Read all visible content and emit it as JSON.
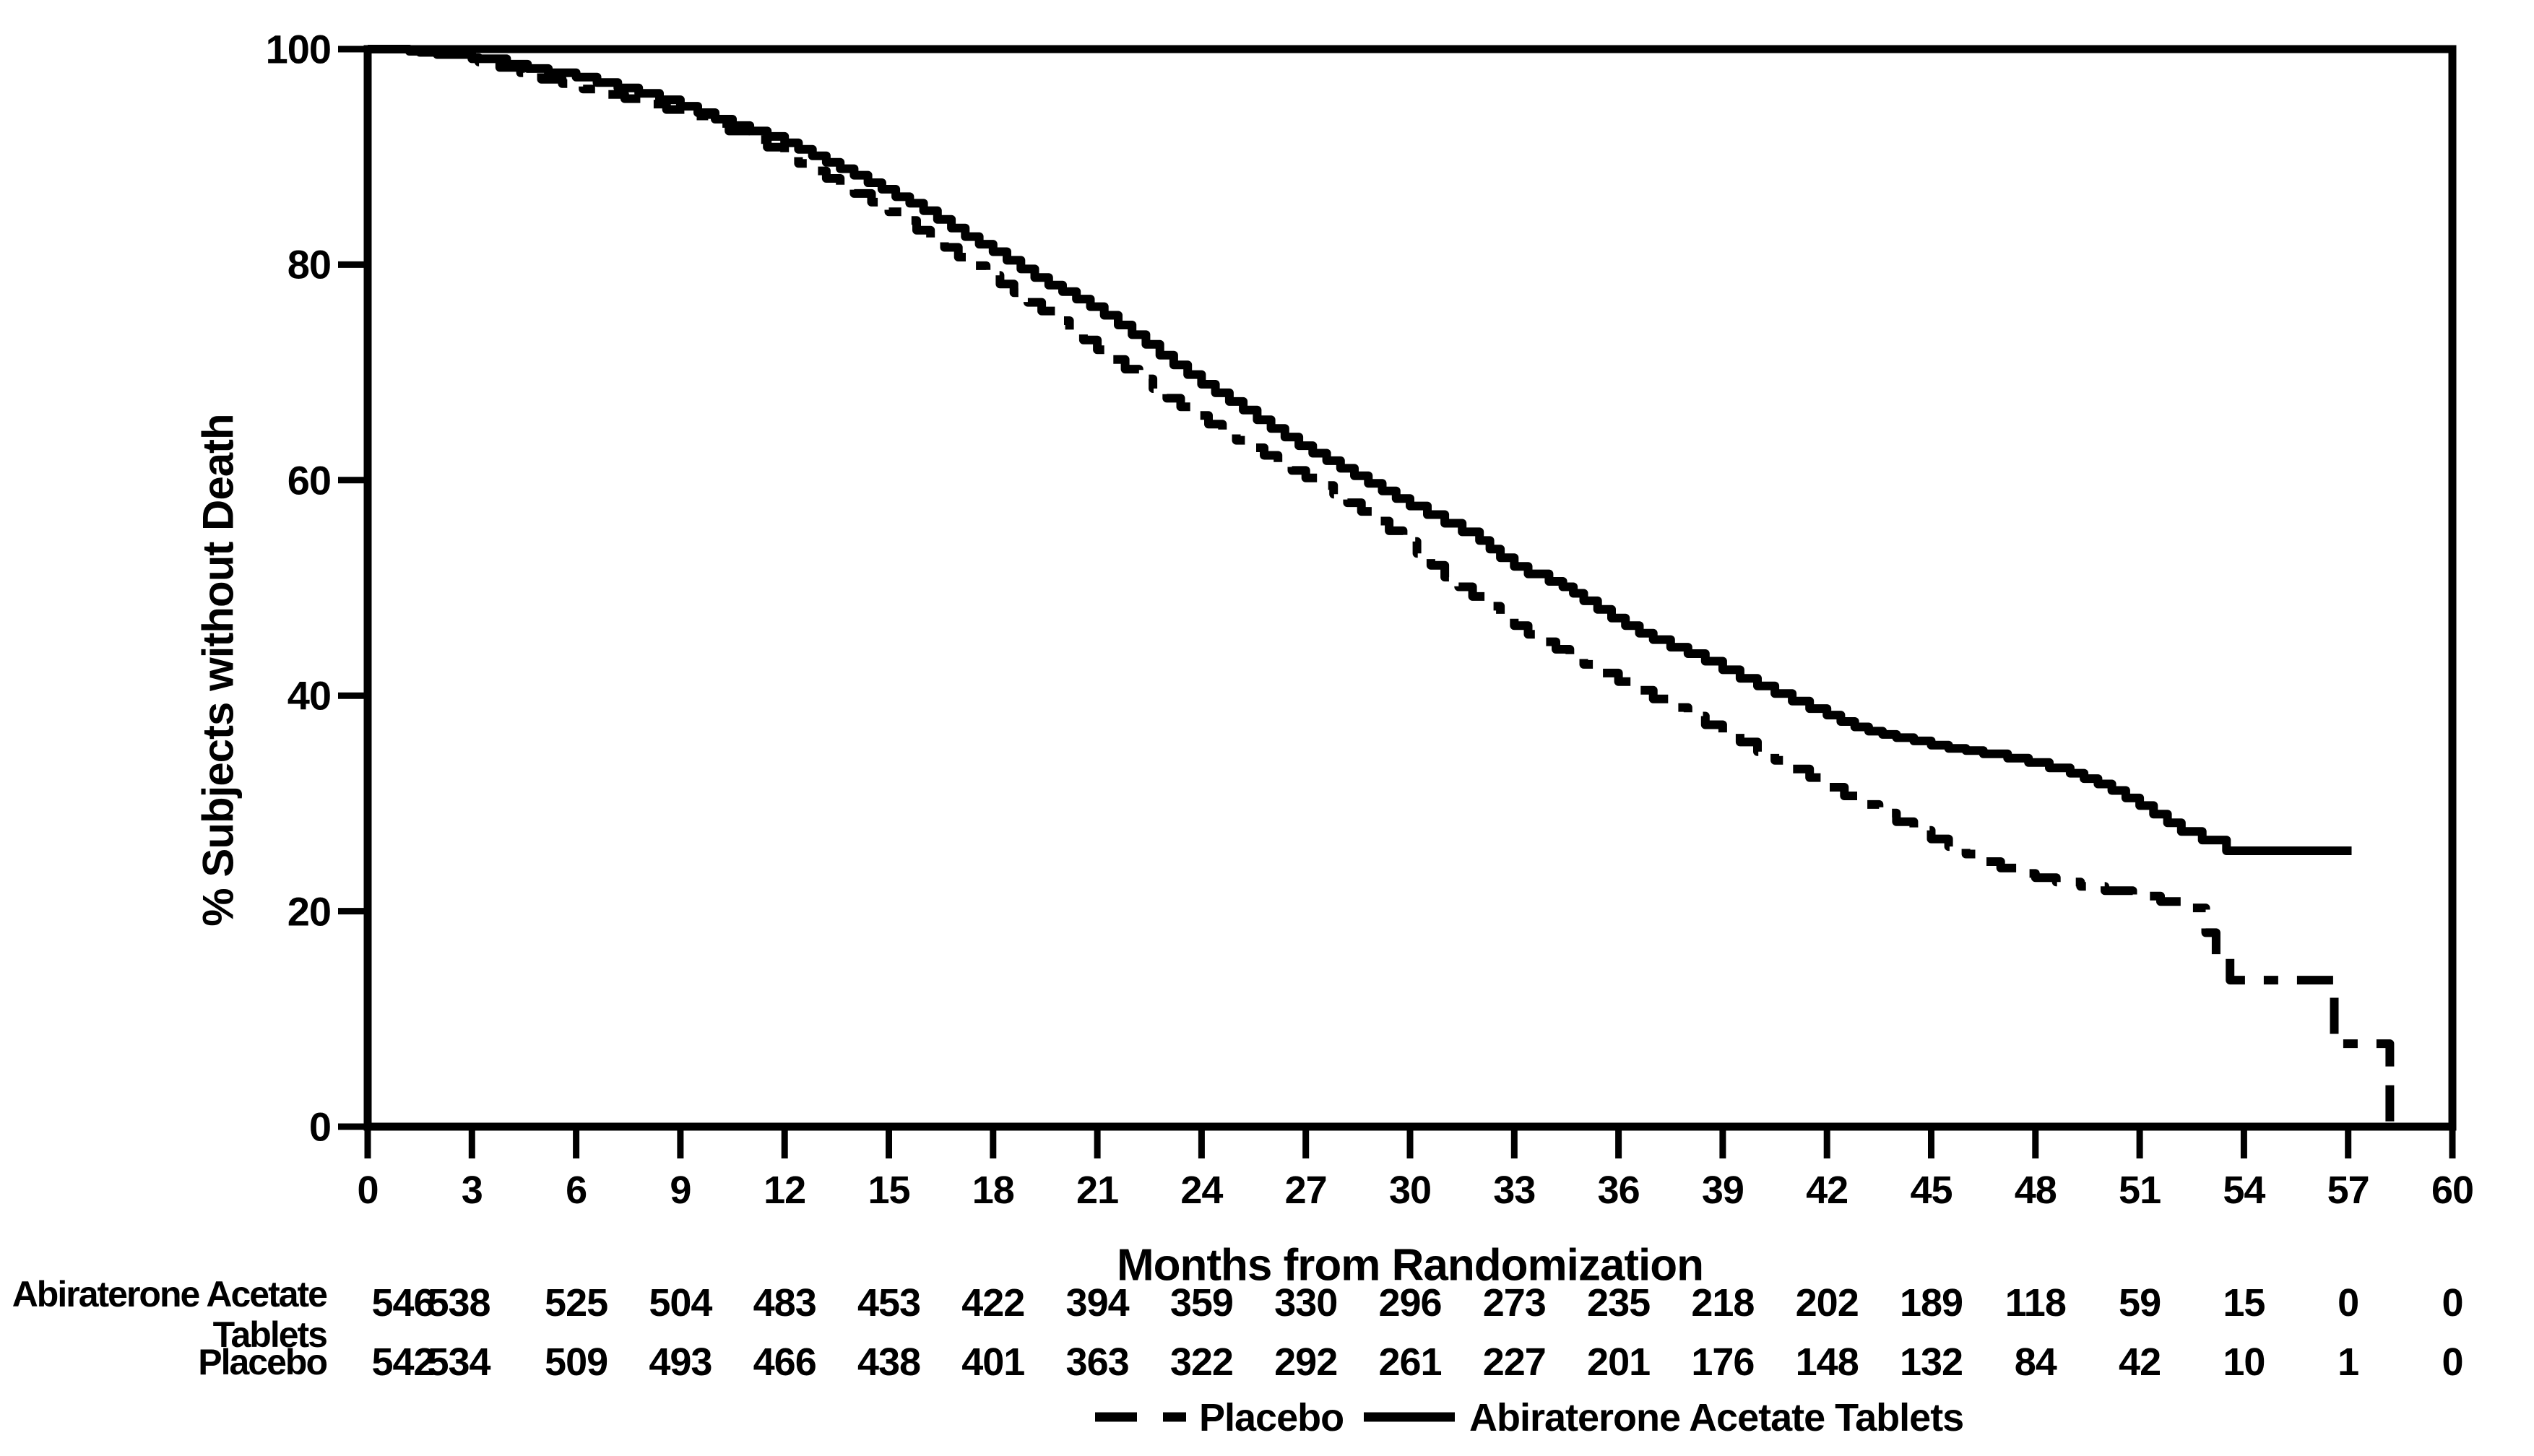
{
  "figure": {
    "background": "#ffffff",
    "ink": "#000000"
  },
  "chart_data": {
    "type": "line",
    "subtype": "kaplan-meier-step-curves",
    "title": "",
    "xlabel": "Months from Randomization",
    "ylabel": "% Subjects without Death",
    "xlim": [
      0,
      60
    ],
    "ylim": [
      0,
      100
    ],
    "x_ticks": [
      0,
      3,
      6,
      9,
      12,
      15,
      18,
      21,
      24,
      27,
      30,
      33,
      36,
      39,
      42,
      45,
      48,
      51,
      54,
      57,
      60
    ],
    "y_ticks": [
      0,
      20,
      40,
      60,
      80,
      100
    ],
    "grid": false,
    "legend_position": "bottom-center",
    "series": [
      {
        "name": "Placebo",
        "line_style": "dashed",
        "color": "#000000",
        "points": [
          [
            0,
            100
          ],
          [
            1.5,
            99.7
          ],
          [
            2.5,
            99.2
          ],
          [
            3.2,
            98.8
          ],
          [
            3.8,
            98.3
          ],
          [
            4.4,
            97.8
          ],
          [
            5,
            97.2
          ],
          [
            5.6,
            96.8
          ],
          [
            6.2,
            96.3
          ],
          [
            6.8,
            95.8
          ],
          [
            7.4,
            95.4
          ],
          [
            8,
            94.9
          ],
          [
            8.6,
            94.4
          ],
          [
            9.2,
            93.8
          ],
          [
            9.8,
            93.1
          ],
          [
            10.4,
            92.4
          ],
          [
            11,
            91.6
          ],
          [
            11.5,
            90.9
          ],
          [
            12,
            90.2
          ],
          [
            12.4,
            89.4
          ],
          [
            12.8,
            88.7
          ],
          [
            13.2,
            88
          ],
          [
            13.6,
            87.3
          ],
          [
            14,
            86.6
          ],
          [
            14.5,
            85.8
          ],
          [
            15,
            84.9
          ],
          [
            15.4,
            84.1
          ],
          [
            15.8,
            83.2
          ],
          [
            16.2,
            82.4
          ],
          [
            16.6,
            81.6
          ],
          [
            17,
            80.7
          ],
          [
            17.4,
            79.9
          ],
          [
            17.8,
            79
          ],
          [
            18.2,
            78.2
          ],
          [
            18.6,
            77.4
          ],
          [
            19,
            76.5
          ],
          [
            19.4,
            75.7
          ],
          [
            19.8,
            74.8
          ],
          [
            20.2,
            73.9
          ],
          [
            20.6,
            73
          ],
          [
            21,
            72.1
          ],
          [
            21.4,
            71.2
          ],
          [
            21.8,
            70.3
          ],
          [
            22.2,
            69.4
          ],
          [
            22.6,
            68.5
          ],
          [
            23,
            67.6
          ],
          [
            23.4,
            66.8
          ],
          [
            23.8,
            66
          ],
          [
            24.2,
            65.2
          ],
          [
            24.6,
            64.4
          ],
          [
            25,
            63.7
          ],
          [
            25.4,
            63
          ],
          [
            25.8,
            62.3
          ],
          [
            26.2,
            61.6
          ],
          [
            26.6,
            60.9
          ],
          [
            27,
            60.2
          ],
          [
            27.4,
            59.5
          ],
          [
            27.8,
            58.7
          ],
          [
            28.2,
            57.9
          ],
          [
            28.6,
            57.1
          ],
          [
            29,
            56.2
          ],
          [
            29.4,
            55.3
          ],
          [
            29.8,
            54.3
          ],
          [
            30.2,
            53.2
          ],
          [
            30.6,
            52.1
          ],
          [
            31,
            51
          ],
          [
            31.4,
            50.1
          ],
          [
            31.8,
            49.2
          ],
          [
            32.2,
            48.3
          ],
          [
            32.6,
            47.4
          ],
          [
            33,
            46.5
          ],
          [
            33.4,
            45.7
          ],
          [
            33.8,
            45
          ],
          [
            34.2,
            44.3
          ],
          [
            34.6,
            43.6
          ],
          [
            35,
            42.9
          ],
          [
            35.5,
            42.1
          ],
          [
            36,
            41.3
          ],
          [
            36.5,
            40.5
          ],
          [
            37,
            39.7
          ],
          [
            37.5,
            38.9
          ],
          [
            38,
            38.1
          ],
          [
            38.5,
            37.3
          ],
          [
            39,
            36.5
          ],
          [
            39.5,
            35.7
          ],
          [
            40,
            34.8
          ],
          [
            40.5,
            34
          ],
          [
            41,
            33.2
          ],
          [
            41.5,
            32.4
          ],
          [
            42,
            31.5
          ],
          [
            42.5,
            30.7
          ],
          [
            43,
            29.9
          ],
          [
            43.5,
            29.1
          ],
          [
            44,
            28.3
          ],
          [
            44.5,
            27.5
          ],
          [
            45,
            26.7
          ],
          [
            45.5,
            26
          ],
          [
            46,
            25.3
          ],
          [
            46.5,
            24.6
          ],
          [
            47,
            24
          ],
          [
            47.5,
            23.5
          ],
          [
            48,
            23.1
          ],
          [
            48.6,
            22.7
          ],
          [
            49.3,
            22.3
          ],
          [
            50,
            21.9
          ],
          [
            50.8,
            21.4
          ],
          [
            51.6,
            20.9
          ],
          [
            52.4,
            20.3
          ],
          [
            52.9,
            18
          ],
          [
            53.2,
            16
          ],
          [
            53.6,
            13.6
          ],
          [
            56.6,
            7.7
          ],
          [
            58.2,
            0
          ]
        ]
      },
      {
        "name": "Abiraterone Acetate Tablets",
        "line_style": "solid",
        "color": "#000000",
        "points": [
          [
            0,
            100
          ],
          [
            1.2,
            99.8
          ],
          [
            2,
            99.5
          ],
          [
            3,
            99.1
          ],
          [
            4,
            98.6
          ],
          [
            4.6,
            98.2
          ],
          [
            5.2,
            97.8
          ],
          [
            6,
            97.4
          ],
          [
            6.6,
            96.9
          ],
          [
            7.2,
            96.4
          ],
          [
            7.8,
            95.9
          ],
          [
            8.4,
            95.3
          ],
          [
            9,
            94.7
          ],
          [
            9.5,
            94.1
          ],
          [
            10,
            93.5
          ],
          [
            10.5,
            92.9
          ],
          [
            11,
            92.4
          ],
          [
            11.5,
            91.9
          ],
          [
            12,
            91.3
          ],
          [
            12.4,
            90.7
          ],
          [
            12.8,
            90.1
          ],
          [
            13.2,
            89.5
          ],
          [
            13.6,
            88.9
          ],
          [
            14,
            88.3
          ],
          [
            14.4,
            87.6
          ],
          [
            14.8,
            87
          ],
          [
            15.2,
            86.3
          ],
          [
            15.6,
            85.7
          ],
          [
            16,
            85
          ],
          [
            16.4,
            84.2
          ],
          [
            16.8,
            83.4
          ],
          [
            17.2,
            82.6
          ],
          [
            17.6,
            81.9
          ],
          [
            18,
            81.2
          ],
          [
            18.4,
            80.4
          ],
          [
            18.8,
            79.6
          ],
          [
            19.2,
            78.8
          ],
          [
            19.6,
            78.1
          ],
          [
            20,
            77.5
          ],
          [
            20.4,
            76.8
          ],
          [
            20.8,
            76.1
          ],
          [
            21.2,
            75.3
          ],
          [
            21.6,
            74.4
          ],
          [
            22,
            73.5
          ],
          [
            22.4,
            72.6
          ],
          [
            22.8,
            71.6
          ],
          [
            23.2,
            70.7
          ],
          [
            23.6,
            69.8
          ],
          [
            24,
            68.9
          ],
          [
            24.4,
            68.1
          ],
          [
            24.8,
            67.3
          ],
          [
            25.2,
            66.5
          ],
          [
            25.6,
            65.6
          ],
          [
            26,
            64.8
          ],
          [
            26.4,
            64
          ],
          [
            26.8,
            63.2
          ],
          [
            27.2,
            62.5
          ],
          [
            27.6,
            61.8
          ],
          [
            28,
            61.1
          ],
          [
            28.4,
            60.4
          ],
          [
            28.8,
            59.7
          ],
          [
            29.2,
            59
          ],
          [
            29.6,
            58.3
          ],
          [
            30,
            57.6
          ],
          [
            30.5,
            56.8
          ],
          [
            31,
            56
          ],
          [
            31.5,
            55.2
          ],
          [
            32,
            54.4
          ],
          [
            32.3,
            53.6
          ],
          [
            32.6,
            52.8
          ],
          [
            33,
            52
          ],
          [
            33.4,
            51.3
          ],
          [
            34,
            50.6
          ],
          [
            34.4,
            50.1
          ],
          [
            34.7,
            49.5
          ],
          [
            35,
            48.8
          ],
          [
            35.4,
            48
          ],
          [
            35.8,
            47.2
          ],
          [
            36.2,
            46.5
          ],
          [
            36.6,
            45.8
          ],
          [
            37,
            45.2
          ],
          [
            37.5,
            44.5
          ],
          [
            38,
            43.9
          ],
          [
            38.5,
            43.2
          ],
          [
            39,
            42.4
          ],
          [
            39.5,
            41.6
          ],
          [
            40,
            40.9
          ],
          [
            40.5,
            40.2
          ],
          [
            41,
            39.5
          ],
          [
            41.5,
            38.8
          ],
          [
            42,
            38.2
          ],
          [
            42.4,
            37.6
          ],
          [
            42.8,
            37.1
          ],
          [
            43.2,
            36.7
          ],
          [
            43.6,
            36.4
          ],
          [
            44,
            36.1
          ],
          [
            44.5,
            35.8
          ],
          [
            45,
            35.4
          ],
          [
            45.5,
            35.1
          ],
          [
            46,
            34.9
          ],
          [
            46.5,
            34.6
          ],
          [
            47.2,
            34.2
          ],
          [
            47.8,
            33.8
          ],
          [
            48.4,
            33.3
          ],
          [
            49,
            32.8
          ],
          [
            49.4,
            32.3
          ],
          [
            49.8,
            31.8
          ],
          [
            50.2,
            31.2
          ],
          [
            50.6,
            30.5
          ],
          [
            51,
            29.8
          ],
          [
            51.4,
            29
          ],
          [
            51.8,
            28.2
          ],
          [
            52.2,
            27.4
          ],
          [
            52.8,
            26.6
          ],
          [
            53.5,
            25.6
          ],
          [
            57.1,
            25.6
          ]
        ]
      }
    ]
  },
  "risk_table": {
    "months": [
      0,
      3,
      6,
      9,
      12,
      15,
      18,
      21,
      24,
      27,
      30,
      33,
      36,
      39,
      42,
      45,
      48,
      51,
      54,
      57,
      60
    ],
    "rows": [
      {
        "label_lines": [
          "Abiraterone Acetate",
          "Tablets"
        ],
        "counts": [
          "546",
          "538",
          "525",
          "504",
          "483",
          "453",
          "422",
          "394",
          "359",
          "330",
          "296",
          "273",
          "235",
          "218",
          "202",
          "189",
          "118",
          "59",
          "15",
          "0",
          "0"
        ]
      },
      {
        "label_lines": [
          "Placebo"
        ],
        "counts": [
          "542",
          "534",
          "509",
          "493",
          "466",
          "438",
          "401",
          "363",
          "322",
          "292",
          "261",
          "227",
          "201",
          "176",
          "148",
          "132",
          "84",
          "42",
          "10",
          "1",
          "0"
        ]
      }
    ]
  },
  "legend": {
    "items": [
      {
        "label": "Placebo",
        "style": "dashed"
      },
      {
        "label": "Abiraterone Acetate Tablets",
        "style": "solid"
      }
    ]
  }
}
